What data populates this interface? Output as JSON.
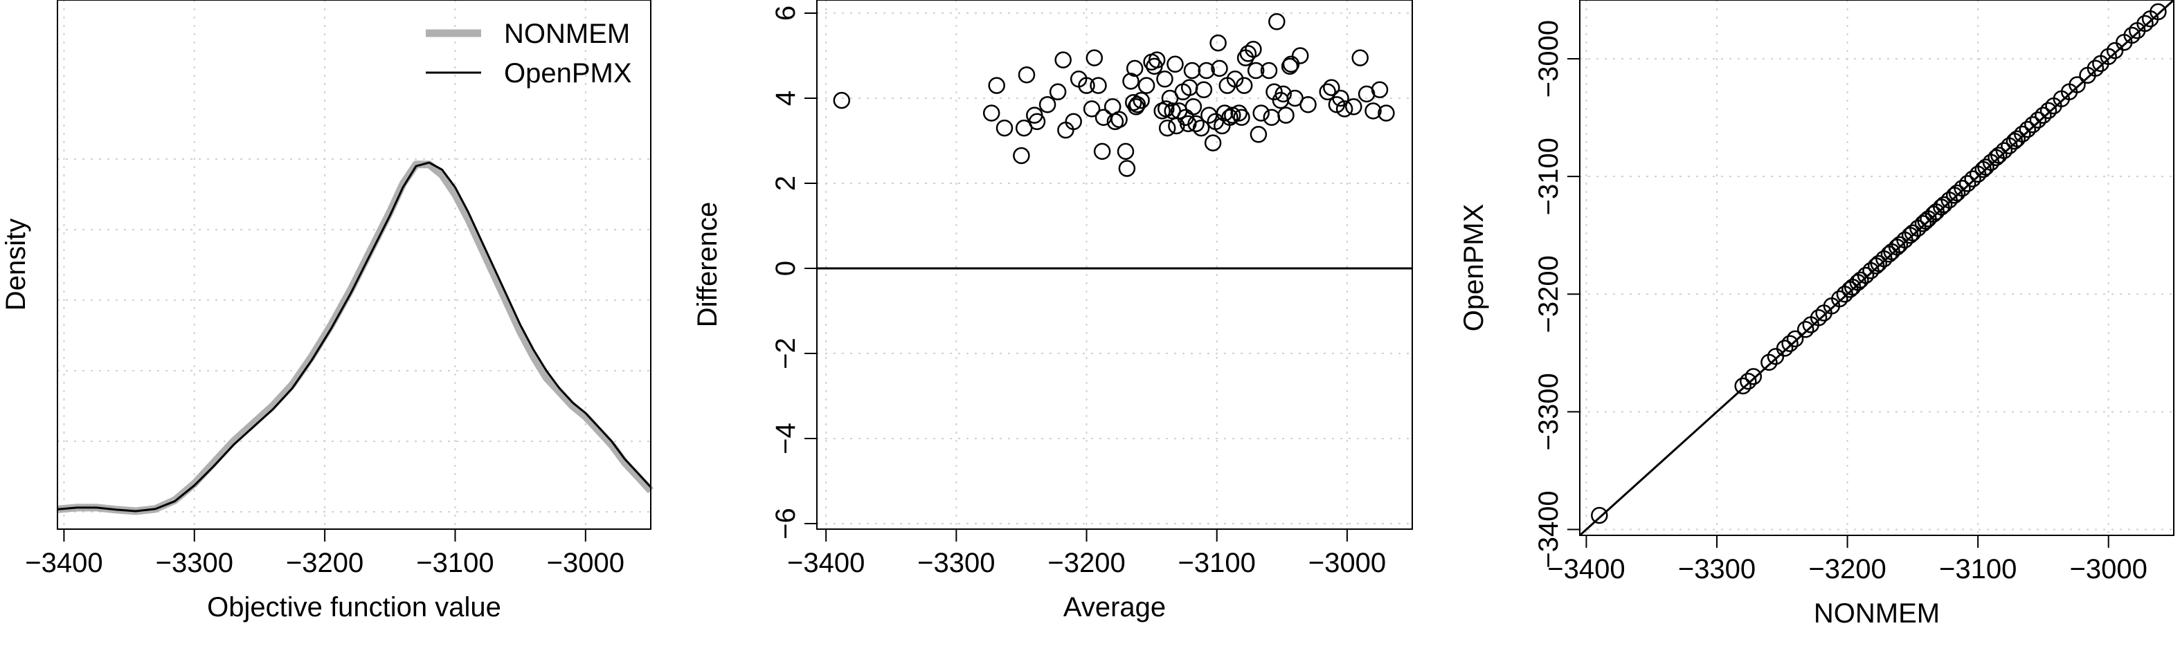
{
  "chart_data": [
    {
      "type": "line",
      "panel": "density",
      "xlabel": "Objective function value",
      "ylabel": "Density",
      "xlim": [
        -3405,
        -2950
      ],
      "ylim": [
        0,
        1
      ],
      "xticks": [
        -3400,
        -3300,
        -3200,
        -3100,
        -3000
      ],
      "grid": true,
      "legend": {
        "placement": "top-right"
      },
      "series": [
        {
          "name": "NONMEM",
          "color": "#b0b0b0",
          "x": [
            -3405,
            -3390,
            -3375,
            -3360,
            -3345,
            -3330,
            -3315,
            -3300,
            -3285,
            -3270,
            -3255,
            -3240,
            -3225,
            -3210,
            -3195,
            -3180,
            -3165,
            -3150,
            -3140,
            -3130,
            -3120,
            -3110,
            -3100,
            -3090,
            -3080,
            -3070,
            -3060,
            -3050,
            -3040,
            -3030,
            -3020,
            -3010,
            -3000,
            -2990,
            -2980,
            -2970,
            -2960,
            -2950
          ],
          "y": [
            0.007,
            0.012,
            0.012,
            0.006,
            0.002,
            0.008,
            0.033,
            0.08,
            0.14,
            0.2,
            0.25,
            0.3,
            0.36,
            0.44,
            0.53,
            0.63,
            0.74,
            0.85,
            0.93,
            0.985,
            0.985,
            0.955,
            0.9,
            0.83,
            0.75,
            0.67,
            0.59,
            0.51,
            0.44,
            0.38,
            0.34,
            0.3,
            0.27,
            0.23,
            0.19,
            0.14,
            0.1,
            0.06
          ]
        },
        {
          "name": "OpenPMX",
          "color": "#000000",
          "x": [
            -3405,
            -3390,
            -3375,
            -3360,
            -3345,
            -3330,
            -3315,
            -3300,
            -3285,
            -3270,
            -3255,
            -3240,
            -3225,
            -3210,
            -3195,
            -3180,
            -3165,
            -3150,
            -3140,
            -3130,
            -3120,
            -3110,
            -3100,
            -3090,
            -3080,
            -3070,
            -3060,
            -3050,
            -3040,
            -3030,
            -3020,
            -3010,
            -3000,
            -2990,
            -2980,
            -2970,
            -2960,
            -2950
          ],
          "y": [
            0.007,
            0.012,
            0.012,
            0.006,
            0.002,
            0.008,
            0.03,
            0.075,
            0.13,
            0.19,
            0.24,
            0.29,
            0.35,
            0.43,
            0.52,
            0.62,
            0.73,
            0.84,
            0.92,
            0.98,
            0.99,
            0.97,
            0.92,
            0.85,
            0.77,
            0.69,
            0.61,
            0.53,
            0.46,
            0.4,
            0.35,
            0.31,
            0.28,
            0.24,
            0.2,
            0.15,
            0.11,
            0.07
          ]
        }
      ]
    },
    {
      "type": "scatter",
      "panel": "bland-altman",
      "xlabel": "Average",
      "ylabel": "Difference",
      "xlim": [
        -3407,
        -2950
      ],
      "ylim": [
        -6.5,
        6.5
      ],
      "xticks": [
        -3400,
        -3300,
        -3200,
        -3100,
        -3000
      ],
      "yticks": [
        -6,
        -4,
        -2,
        0,
        2,
        4,
        6
      ],
      "hline": 0,
      "grid": true,
      "points": [
        [
          -3388,
          3.95
        ],
        [
          -3273,
          3.65
        ],
        [
          -3269,
          4.3
        ],
        [
          -3263,
          3.3
        ],
        [
          -3250,
          2.65
        ],
        [
          -3248,
          3.3
        ],
        [
          -3246,
          4.55
        ],
        [
          -3240,
          3.6
        ],
        [
          -3238,
          3.45
        ],
        [
          -3230,
          3.85
        ],
        [
          -3222,
          4.15
        ],
        [
          -3218,
          4.9
        ],
        [
          -3216,
          3.25
        ],
        [
          -3210,
          3.45
        ],
        [
          -3206,
          4.45
        ],
        [
          -3200,
          4.3
        ],
        [
          -3196,
          3.75
        ],
        [
          -3194,
          4.95
        ],
        [
          -3191,
          4.3
        ],
        [
          -3188,
          2.75
        ],
        [
          -3187,
          3.55
        ],
        [
          -3180,
          3.8
        ],
        [
          -3178,
          3.45
        ],
        [
          -3175,
          3.5
        ],
        [
          -3170,
          2.75
        ],
        [
          -3169,
          2.35
        ],
        [
          -3166,
          4.4
        ],
        [
          -3164,
          3.9
        ],
        [
          -3163,
          4.7
        ],
        [
          -3162,
          3.8
        ],
        [
          -3161,
          3.85
        ],
        [
          -3158,
          3.95
        ],
        [
          -3154,
          4.3
        ],
        [
          -3150,
          4.85
        ],
        [
          -3148,
          4.75
        ],
        [
          -3146,
          4.9
        ],
        [
          -3142,
          3.7
        ],
        [
          -3140,
          4.45
        ],
        [
          -3139,
          3.75
        ],
        [
          -3138,
          3.3
        ],
        [
          -3136,
          4.0
        ],
        [
          -3134,
          3.7
        ],
        [
          -3132,
          4.8
        ],
        [
          -3131,
          3.35
        ],
        [
          -3129,
          3.7
        ],
        [
          -3126,
          4.15
        ],
        [
          -3124,
          3.55
        ],
        [
          -3122,
          3.4
        ],
        [
          -3121,
          4.25
        ],
        [
          -3119,
          4.65
        ],
        [
          -3118,
          3.8
        ],
        [
          -3116,
          3.4
        ],
        [
          -3112,
          3.3
        ],
        [
          -3110,
          4.2
        ],
        [
          -3108,
          4.65
        ],
        [
          -3106,
          3.6
        ],
        [
          -3103,
          2.95
        ],
        [
          -3101,
          3.45
        ],
        [
          -3099,
          5.3
        ],
        [
          -3098,
          4.7
        ],
        [
          -3096,
          3.35
        ],
        [
          -3094,
          3.65
        ],
        [
          -3092,
          4.3
        ],
        [
          -3090,
          3.55
        ],
        [
          -3088,
          3.6
        ],
        [
          -3086,
          4.45
        ],
        [
          -3083,
          3.65
        ],
        [
          -3081,
          3.55
        ],
        [
          -3079,
          4.3
        ],
        [
          -3078,
          4.95
        ],
        [
          -3076,
          5.05
        ],
        [
          -3072,
          5.15
        ],
        [
          -3070,
          4.65
        ],
        [
          -3068,
          3.15
        ],
        [
          -3066,
          3.65
        ],
        [
          -3060,
          4.65
        ],
        [
          -3058,
          3.55
        ],
        [
          -3056,
          4.15
        ],
        [
          -3054,
          5.8
        ],
        [
          -3051,
          3.95
        ],
        [
          -3049,
          4.1
        ],
        [
          -3047,
          3.6
        ],
        [
          -3044,
          4.75
        ],
        [
          -3043,
          4.8
        ],
        [
          -3040,
          4.0
        ],
        [
          -3036,
          5.0
        ],
        [
          -3030,
          3.85
        ],
        [
          -3015,
          4.15
        ],
        [
          -3012,
          4.25
        ],
        [
          -3008,
          3.85
        ],
        [
          -3005,
          4.0
        ],
        [
          -3002,
          3.75
        ],
        [
          -2995,
          3.8
        ],
        [
          -2990,
          4.95
        ],
        [
          -2985,
          4.1
        ],
        [
          -2980,
          3.7
        ],
        [
          -2975,
          4.2
        ],
        [
          -2970,
          3.65
        ]
      ]
    },
    {
      "type": "scatter",
      "panel": "identity",
      "xlabel": "NONMEM",
      "ylabel": "OpenPMX",
      "xlim": [
        -3405,
        -2950
      ],
      "ylim": [
        -3405,
        -2950
      ],
      "xticks": [
        -3400,
        -3300,
        -3200,
        -3100,
        -3000
      ],
      "yticks": [
        -3400,
        -3300,
        -3200,
        -3100,
        -3000
      ],
      "identity_line": true,
      "grid": true,
      "x": [
        -3390,
        -3280,
        -3276,
        -3272,
        -3260,
        -3255,
        -3248,
        -3244,
        -3240,
        -3232,
        -3228,
        -3222,
        -3218,
        -3212,
        -3206,
        -3202,
        -3198,
        -3196,
        -3192,
        -3190,
        -3186,
        -3182,
        -3178,
        -3176,
        -3172,
        -3168,
        -3166,
        -3162,
        -3160,
        -3156,
        -3152,
        -3150,
        -3146,
        -3142,
        -3140,
        -3138,
        -3134,
        -3132,
        -3128,
        -3126,
        -3122,
        -3118,
        -3116,
        -3112,
        -3108,
        -3104,
        -3100,
        -3096,
        -3094,
        -3090,
        -3086,
        -3084,
        -3080,
        -3076,
        -3072,
        -3070,
        -3066,
        -3062,
        -3058,
        -3054,
        -3050,
        -3046,
        -3042,
        -3036,
        -3030,
        -3024,
        -3016,
        -3010,
        -3006,
        -3000,
        -2995,
        -2988,
        -2982,
        -2978,
        -2972,
        -2968,
        -2962
      ]
    }
  ]
}
